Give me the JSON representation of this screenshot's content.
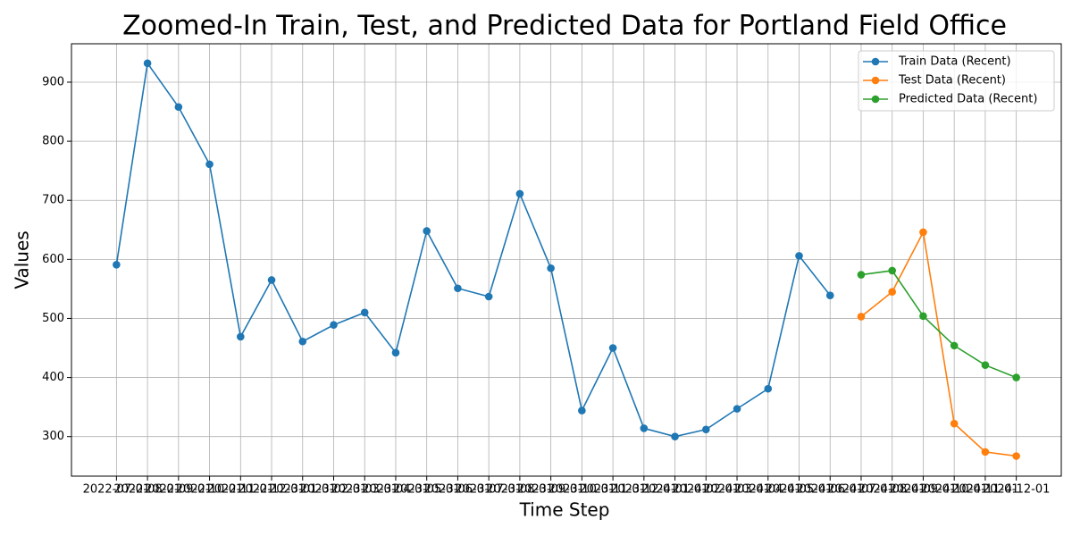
{
  "chart_data": {
    "type": "line",
    "title": "Zoomed-In Train, Test, and Predicted Data for Portland Field Office",
    "xlabel": "Time Step",
    "ylabel": "Values",
    "categories": [
      "2022-07-01",
      "2022-08-01",
      "2022-09-01",
      "2022-10-01",
      "2022-11-01",
      "2022-12-01",
      "2023-01-01",
      "2023-02-01",
      "2023-03-01",
      "2023-04-01",
      "2023-05-01",
      "2023-06-01",
      "2023-07-01",
      "2023-08-01",
      "2023-09-01",
      "2023-10-01",
      "2023-11-01",
      "2023-12-01",
      "2024-01-01",
      "2024-02-01",
      "2024-03-01",
      "2024-04-01",
      "2024-05-01",
      "2024-06-01",
      "2024-07-01",
      "2024-08-01",
      "2024-09-01",
      "2024-10-01",
      "2024-11-01",
      "2024-12-01"
    ],
    "series": [
      {
        "name": "Train Data (Recent)",
        "color": "#1f77b4",
        "values": [
          591,
          932,
          858,
          761,
          469,
          565,
          461,
          489,
          510,
          442,
          648,
          551,
          537,
          711,
          585,
          344,
          450,
          314,
          300,
          312,
          347,
          381,
          606,
          539,
          null,
          null,
          null,
          null,
          null,
          null
        ]
      },
      {
        "name": "Test Data (Recent)",
        "color": "#ff7f0e",
        "values": [
          null,
          null,
          null,
          null,
          null,
          null,
          null,
          null,
          null,
          null,
          null,
          null,
          null,
          null,
          null,
          null,
          null,
          null,
          null,
          null,
          null,
          null,
          null,
          null,
          503,
          545,
          646,
          322,
          274,
          267
        ]
      },
      {
        "name": "Predicted Data (Recent)",
        "color": "#2ca02c",
        "values": [
          null,
          null,
          null,
          null,
          null,
          null,
          null,
          null,
          null,
          null,
          null,
          null,
          null,
          null,
          null,
          null,
          null,
          null,
          null,
          null,
          null,
          null,
          null,
          null,
          574,
          581,
          504,
          454,
          421,
          400
        ]
      }
    ],
    "ylim": [
      233,
      965
    ],
    "yticks": [
      300,
      400,
      500,
      600,
      700,
      800,
      900
    ],
    "grid": true,
    "legend": "upper right"
  }
}
